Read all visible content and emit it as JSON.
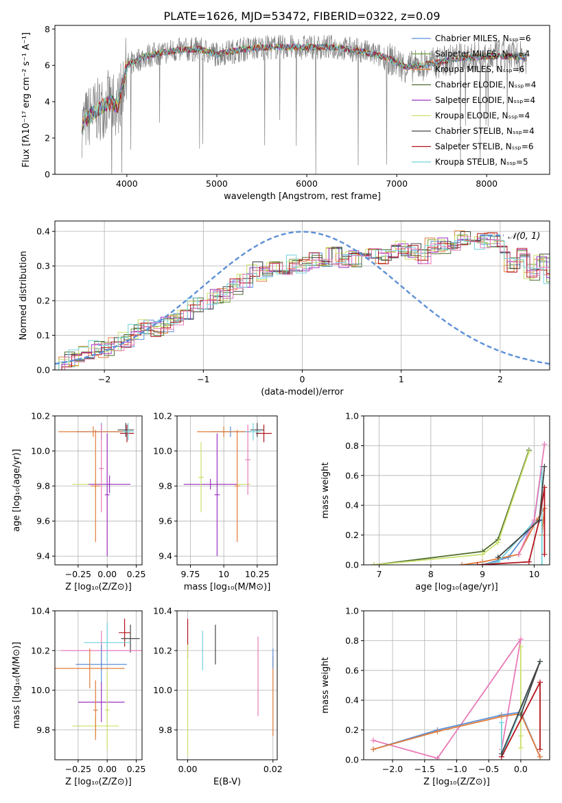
{
  "figure": {
    "title": "PLATE=1626, MJD=53472, FIBERID=0322, z=0.09"
  },
  "colors": {
    "chabrier_miles": "#5b8fd6",
    "salpeter_miles": "#6e9e3a",
    "kroupa_miles": "#e07b39",
    "chabrier_elodie": "#4d6b2e",
    "salpeter_elodie": "#9b30c0",
    "kroupa_elodie": "#c9e06a",
    "chabrier_stelib": "#444444",
    "salpeter_stelib": "#b3121b",
    "kroupa_stelib": "#6fd0dc",
    "pink": "#e87ab8",
    "data": "#808080",
    "normal": "#5b8fd6"
  },
  "chart_data": [
    {
      "id": "spectrum",
      "type": "line",
      "xlabel": "wavelength [Angstrom, rest frame]",
      "ylabel": "Flux [fλ10⁻¹⁷ erg cm⁻² s⁻¹ A⁻¹]",
      "xlim": [
        3200,
        8700
      ],
      "ylim": [
        0,
        8.2
      ],
      "xticks": [
        4000,
        5000,
        6000,
        7000,
        8000
      ],
      "yticks": [
        0,
        2,
        4,
        6,
        8
      ],
      "grid": false,
      "legend_position": "top-right",
      "legend": [
        {
          "label": "Chabrier MILES, N_SSP=6",
          "color": "chabrier_miles"
        },
        {
          "label": "Salpeter MILES, N_SSP=4",
          "color": "salpeter_miles"
        },
        {
          "label": "Kroupa MILES, N_SSP=6",
          "color": "kroupa_miles"
        },
        {
          "label": "Chabrier ELODIE, N_SSP=4",
          "color": "chabrier_elodie"
        },
        {
          "label": "Salpeter ELODIE, N_SSP=4",
          "color": "salpeter_elodie"
        },
        {
          "label": "Kroupa ELODIE, N_SSP=4",
          "color": "kroupa_elodie"
        },
        {
          "label": "Chabrier STELIB, N_SSP=4",
          "color": "chabrier_stelib"
        },
        {
          "label": "Salpeter STELIB, N_SSP=6",
          "color": "salpeter_stelib"
        },
        {
          "label": "Kroupa STELIB, N_SSP=5",
          "color": "kroupa_stelib"
        }
      ],
      "continuum": [
        [
          3500,
          2.7
        ],
        [
          3600,
          3.3
        ],
        [
          3700,
          3.6
        ],
        [
          3800,
          4.0
        ],
        [
          3900,
          3.8
        ],
        [
          4000,
          6.0
        ],
        [
          4200,
          6.5
        ],
        [
          4500,
          6.8
        ],
        [
          4800,
          6.9
        ],
        [
          5000,
          6.6
        ],
        [
          5300,
          6.9
        ],
        [
          5600,
          7.0
        ],
        [
          6000,
          7.0
        ],
        [
          6300,
          7.0
        ],
        [
          6600,
          6.8
        ],
        [
          6900,
          6.4
        ],
        [
          7100,
          5.9
        ],
        [
          7400,
          6.1
        ],
        [
          7700,
          6.4
        ],
        [
          8000,
          6.5
        ],
        [
          8300,
          6.5
        ],
        [
          8450,
          6.4
        ]
      ],
      "model_range": [
        3500,
        8450
      ]
    },
    {
      "id": "residuals",
      "type": "step",
      "xlabel": "(data-model)/error",
      "ylabel": "Normed distribution",
      "xlim": [
        -2.5,
        2.5
      ],
      "ylim": [
        0,
        0.43
      ],
      "xticks": [
        -2,
        -1,
        0,
        1,
        2
      ],
      "yticks": [
        0.0,
        0.1,
        0.2,
        0.3,
        0.4
      ],
      "grid": true,
      "legend_position": "top-right",
      "normal_label": "𝒩(0, 1)",
      "bin_width": 0.1,
      "base_heights": [
        0.02,
        0.03,
        0.035,
        0.05,
        0.06,
        0.06,
        0.07,
        0.09,
        0.11,
        0.12,
        0.12,
        0.13,
        0.15,
        0.17,
        0.19,
        0.18,
        0.21,
        0.22,
        0.24,
        0.26,
        0.29,
        0.28,
        0.3,
        0.27,
        0.31,
        0.3,
        0.32,
        0.31,
        0.33,
        0.32,
        0.32,
        0.33,
        0.34,
        0.33,
        0.34,
        0.35,
        0.34,
        0.33,
        0.36,
        0.36,
        0.36,
        0.38,
        0.38,
        0.37,
        0.38,
        0.35,
        0.3,
        0.33,
        0.28,
        0.31,
        0.27,
        0.27,
        0.29,
        0.26,
        0.24,
        0.22,
        0.2,
        0.17,
        0.18,
        0.15,
        0.14,
        0.13,
        0.12,
        0.11,
        0.1,
        0.09,
        0.08,
        0.09,
        0.07,
        0.06,
        0.06,
        0.05,
        0.04,
        0.03
      ],
      "bin_start": -2.5
    },
    {
      "id": "age_vs_Z",
      "type": "errorbar",
      "xlabel": "Z [log₁₀(Z/Z⊙)]",
      "ylabel": "age  [log₁₀(age/yr)]",
      "xlim": [
        -0.45,
        0.3
      ],
      "ylim": [
        9.35,
        10.2
      ],
      "xticks": [
        -0.25,
        0.0,
        0.25
      ],
      "xticklabels": [
        "−0.25",
        "0.00",
        "0.25"
      ],
      "yticks": [
        9.4,
        9.6,
        9.8,
        10.0,
        10.2
      ],
      "grid": true,
      "points": [
        {
          "x": -0.05,
          "y": 10.11,
          "xerr": 0.22,
          "yerr": 0.05,
          "color": "chabrier_miles"
        },
        {
          "x": -0.12,
          "y": 10.11,
          "xerr": 0.3,
          "yerr": 0.03,
          "color": "kroupa_miles"
        },
        {
          "x": 0.17,
          "y": 10.1,
          "xerr": 0.06,
          "yerr": 0.05,
          "color": "salpeter_stelib"
        },
        {
          "x": 0.16,
          "y": 10.12,
          "xerr": 0.07,
          "yerr": 0.04,
          "color": "chabrier_stelib"
        },
        {
          "x": 0.18,
          "y": 10.11,
          "xerr": 0.05,
          "yerr": 0.05,
          "color": "kroupa_stelib"
        },
        {
          "x": -0.1,
          "y": 9.81,
          "xerr": 0.2,
          "yerr": 0.03,
          "color": "kroupa_elodie"
        },
        {
          "x": 0.02,
          "y": 9.81,
          "xerr": 0.18,
          "yerr": 0.05,
          "color": "salpeter_elodie"
        },
        {
          "x": -0.1,
          "y": 9.8,
          "xerr": 0.04,
          "yerr": 0.32,
          "color": "kroupa_miles"
        },
        {
          "x": 0.0,
          "y": 9.75,
          "xerr": 0.02,
          "yerr": 0.35,
          "color": "salpeter_elodie"
        },
        {
          "x": -0.05,
          "y": 9.9,
          "xerr": 0.02,
          "yerr": 0.25,
          "color": "pink"
        }
      ]
    },
    {
      "id": "age_vs_mass",
      "type": "errorbar",
      "xlabel": "mass [log₁₀(M/M⊙)]",
      "ylabel": "",
      "xlim": [
        9.65,
        10.4
      ],
      "ylim": [
        9.35,
        10.2
      ],
      "xticks": [
        9.75,
        10.0,
        10.25
      ],
      "yticks": [
        9.4,
        9.6,
        9.8,
        10.0,
        10.2
      ],
      "grid": true,
      "points": [
        {
          "x": 10.05,
          "y": 10.11,
          "xerr": 0.15,
          "yerr": 0.03,
          "color": "chabrier_miles"
        },
        {
          "x": 10.0,
          "y": 10.11,
          "xerr": 0.2,
          "yerr": 0.03,
          "color": "kroupa_miles"
        },
        {
          "x": 10.3,
          "y": 10.1,
          "xerr": 0.06,
          "yerr": 0.05,
          "color": "salpeter_stelib"
        },
        {
          "x": 10.25,
          "y": 10.12,
          "xerr": 0.05,
          "yerr": 0.04,
          "color": "chabrier_stelib"
        },
        {
          "x": 10.22,
          "y": 10.11,
          "xerr": 0.06,
          "yerr": 0.05,
          "color": "kroupa_stelib"
        },
        {
          "x": 9.95,
          "y": 9.81,
          "xerr": 0.25,
          "yerr": 0.03,
          "color": "kroupa_elodie"
        },
        {
          "x": 9.9,
          "y": 9.81,
          "xerr": 0.2,
          "yerr": 0.03,
          "color": "salpeter_elodie"
        },
        {
          "x": 10.1,
          "y": 9.8,
          "xerr": 0.02,
          "yerr": 0.32,
          "color": "kroupa_miles"
        },
        {
          "x": 9.95,
          "y": 9.75,
          "xerr": 0.02,
          "yerr": 0.35,
          "color": "salpeter_elodie"
        },
        {
          "x": 9.83,
          "y": 9.85,
          "xerr": 0.02,
          "yerr": 0.2,
          "color": "kroupa_elodie"
        },
        {
          "x": 10.18,
          "y": 9.95,
          "xerr": 0.02,
          "yerr": 0.2,
          "color": "pink"
        }
      ]
    },
    {
      "id": "massweight_vs_age",
      "type": "line",
      "xlabel": "age  [log₁₀(age/yr)]",
      "ylabel": "mass weight",
      "xlim": [
        6.7,
        10.3
      ],
      "ylim": [
        0,
        1.0
      ],
      "xticks": [
        7,
        8,
        9,
        10
      ],
      "yticks": [
        0.0,
        0.2,
        0.4,
        0.6,
        0.8,
        1.0
      ],
      "grid": true,
      "series": [
        {
          "color": "chabrier_elodie",
          "points": [
            [
              6.9,
              0.0
            ],
            [
              9.0,
              0.09
            ],
            [
              9.3,
              0.17
            ],
            [
              9.9,
              0.77
            ]
          ]
        },
        {
          "color": "kroupa_elodie",
          "points": [
            [
              6.9,
              0.0
            ],
            [
              9.0,
              0.07
            ],
            [
              9.3,
              0.15
            ],
            [
              9.9,
              0.76
            ]
          ]
        },
        {
          "color": "chabrier_miles",
          "points": [
            [
              8.6,
              0.0
            ],
            [
              9.0,
              0.0
            ],
            [
              9.5,
              0.05
            ],
            [
              10.0,
              0.28
            ],
            [
              10.15,
              0.3
            ]
          ]
        },
        {
          "color": "kroupa_miles",
          "points": [
            [
              8.6,
              0.0
            ],
            [
              9.0,
              0.02
            ],
            [
              9.7,
              0.07
            ],
            [
              10.05,
              0.3
            ],
            [
              10.2,
              0.38
            ],
            [
              10.15,
              0.2
            ]
          ]
        },
        {
          "color": "kroupa_stelib",
          "points": [
            [
              9.0,
              0.0
            ],
            [
              9.3,
              0.02
            ],
            [
              10.0,
              0.29
            ],
            [
              10.15,
              0.66
            ],
            [
              10.15,
              0.0
            ]
          ]
        },
        {
          "color": "pink",
          "points": [
            [
              9.7,
              0.07
            ],
            [
              10.0,
              0.3
            ],
            [
              10.2,
              0.81
            ]
          ]
        },
        {
          "color": "salpeter_stelib",
          "points": [
            [
              8.9,
              0.0
            ],
            [
              9.9,
              0.02
            ],
            [
              10.1,
              0.3
            ],
            [
              10.2,
              0.52
            ],
            [
              10.2,
              0.07
            ]
          ]
        },
        {
          "color": "chabrier_stelib",
          "points": [
            [
              9.3,
              0.05
            ],
            [
              10.1,
              0.3
            ],
            [
              10.2,
              0.66
            ]
          ]
        }
      ]
    },
    {
      "id": "mass_vs_Z",
      "type": "errorbar",
      "xlabel": "Z [log₁₀(Z/Z⊙)]",
      "ylabel": "mass [log₁₀(M/M⊙)]",
      "xlim": [
        -0.45,
        0.3
      ],
      "ylim": [
        9.65,
        10.4
      ],
      "xticks": [
        -0.25,
        0.0,
        0.25
      ],
      "xticklabels": [
        "−0.25",
        "0.00",
        "0.25"
      ],
      "yticks": [
        9.8,
        10.0,
        10.2,
        10.4
      ],
      "grid": true,
      "points": [
        {
          "x": 0.15,
          "y": 10.29,
          "xerr": 0.05,
          "yerr": 0.07,
          "color": "salpeter_stelib"
        },
        {
          "x": 0.2,
          "y": 10.26,
          "xerr": 0.08,
          "yerr": 0.07,
          "color": "chabrier_stelib"
        },
        {
          "x": 0.0,
          "y": 10.24,
          "xerr": 0.2,
          "yerr": 0.1,
          "color": "kroupa_stelib"
        },
        {
          "x": -0.05,
          "y": 10.2,
          "xerr": 0.35,
          "yerr": 0.1,
          "color": "pink"
        },
        {
          "x": -0.05,
          "y": 10.13,
          "xerr": 0.22,
          "yerr": 0.1,
          "color": "chabrier_miles"
        },
        {
          "x": -0.15,
          "y": 10.11,
          "xerr": 0.3,
          "yerr": 0.1,
          "color": "kroupa_miles"
        },
        {
          "x": -0.05,
          "y": 9.94,
          "xerr": 0.2,
          "yerr": 0.1,
          "color": "salpeter_elodie"
        },
        {
          "x": -0.1,
          "y": 9.82,
          "xerr": 0.2,
          "yerr": 0.05,
          "color": "kroupa_elodie"
        },
        {
          "x": -0.1,
          "y": 9.9,
          "xerr": 0.02,
          "yerr": 0.15,
          "color": "kroupa_miles"
        },
        {
          "x": 0.0,
          "y": 9.9,
          "xerr": 0.02,
          "yerr": 0.2,
          "color": "kroupa_elodie"
        }
      ]
    },
    {
      "id": "mass_vs_EBV",
      "type": "errorbar",
      "xlabel": "E(B-V)",
      "ylabel": "",
      "xlim": [
        -0.0025,
        0.021
      ],
      "ylim": [
        9.65,
        10.4
      ],
      "xticks": [
        0.0,
        0.02
      ],
      "xticklabels": [
        "0.00",
        "0.02"
      ],
      "yticks": [
        9.8,
        10.0,
        10.2,
        10.4
      ],
      "grid": true,
      "points": [
        {
          "x": 0.0,
          "y": 10.26,
          "xerr": 0,
          "yerr": 0.1,
          "color": "salpeter_stelib"
        },
        {
          "x": 0.0,
          "y": 9.95,
          "xerr": 0,
          "yerr": 0.28,
          "color": "kroupa_elodie"
        },
        {
          "x": 0.0035,
          "y": 10.2,
          "xerr": 0,
          "yerr": 0.1,
          "color": "kroupa_stelib"
        },
        {
          "x": 0.0065,
          "y": 10.23,
          "xerr": 0,
          "yerr": 0.1,
          "color": "chabrier_stelib"
        },
        {
          "x": 0.0165,
          "y": 10.07,
          "xerr": 0,
          "yerr": 0.2,
          "color": "pink"
        },
        {
          "x": 0.02,
          "y": 9.97,
          "xerr": 0,
          "yerr": 0.2,
          "color": "kroupa_miles"
        },
        {
          "x": 0.02,
          "y": 10.16,
          "xerr": 0,
          "yerr": 0.05,
          "color": "chabrier_miles"
        }
      ]
    },
    {
      "id": "massweight_vs_Z",
      "type": "line",
      "xlabel": "Z [log₁₀(Z/Z⊙)]",
      "ylabel": "mass weight",
      "xlim": [
        -2.45,
        0.45
      ],
      "ylim": [
        0,
        1.0
      ],
      "xticks": [
        -2.0,
        -1.5,
        -1.0,
        -0.5,
        0.0
      ],
      "xticklabels": [
        "−2.0",
        "−1.5",
        "−1.0",
        "−0.5",
        "0.0"
      ],
      "yticks": [
        0.0,
        0.2,
        0.4,
        0.6,
        0.8,
        1.0
      ],
      "grid": true,
      "series": [
        {
          "color": "pink",
          "points": [
            [
              -2.3,
              0.13
            ],
            [
              -1.3,
              0.01
            ],
            [
              0.0,
              0.81
            ],
            [
              -0.3,
              0.07
            ]
          ]
        },
        {
          "color": "chabrier_miles",
          "points": [
            [
              -2.3,
              0.07
            ],
            [
              -1.3,
              0.2
            ],
            [
              -0.3,
              0.3
            ],
            [
              0.0,
              0.32
            ],
            [
              0.3,
              0.02
            ]
          ]
        },
        {
          "color": "kroupa_miles",
          "points": [
            [
              -2.3,
              0.07
            ],
            [
              -1.3,
              0.19
            ],
            [
              -0.3,
              0.29
            ],
            [
              0.0,
              0.31
            ],
            [
              0.3,
              0.02
            ]
          ]
        },
        {
          "color": "kroupa_elodie",
          "points": [
            [
              0.0,
              0.76
            ],
            [
              0.0,
              0.08
            ],
            [
              0.0,
              0.16
            ]
          ]
        },
        {
          "color": "kroupa_stelib",
          "points": [
            [
              -0.3,
              0.25
            ],
            [
              -0.3,
              0.02
            ],
            [
              0.3,
              0.66
            ]
          ]
        },
        {
          "color": "salpeter_stelib",
          "points": [
            [
              -0.3,
              0.02
            ],
            [
              0.3,
              0.52
            ],
            [
              0.3,
              0.07
            ]
          ]
        },
        {
          "color": "chabrier_stelib",
          "points": [
            [
              -0.3,
              0.04
            ],
            [
              0.3,
              0.66
            ],
            [
              0.0,
              0.3
            ]
          ]
        }
      ]
    }
  ]
}
